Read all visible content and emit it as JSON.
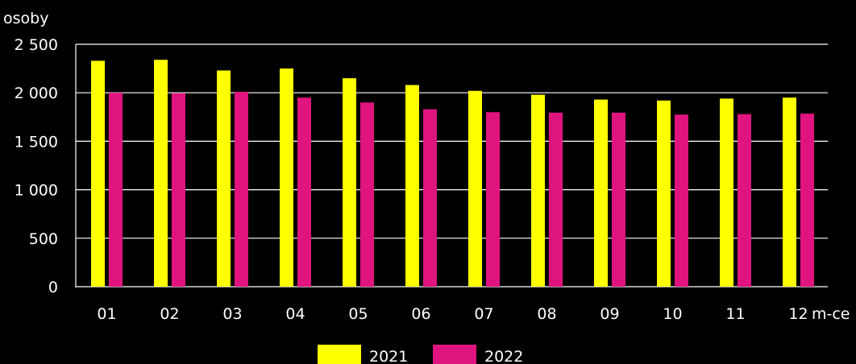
{
  "chart_data": {
    "type": "bar",
    "ylabel": "osoby",
    "xlabel": "m-ce",
    "categories": [
      "01",
      "02",
      "03",
      "04",
      "05",
      "06",
      "07",
      "08",
      "09",
      "10",
      "11",
      "12"
    ],
    "series": [
      {
        "name": "2021",
        "color": "#ffff00",
        "values": [
          2330,
          2340,
          2230,
          2250,
          2150,
          2080,
          2020,
          1980,
          1930,
          1920,
          1940,
          1950
        ]
      },
      {
        "name": "2022",
        "color": "#e0147f",
        "values": [
          2000,
          1995,
          2010,
          1950,
          1900,
          1830,
          1800,
          1795,
          1795,
          1775,
          1780,
          1785
        ]
      }
    ],
    "ylim": [
      0,
      2500
    ],
    "yticks": [
      0,
      500,
      1000,
      1500,
      2000,
      2500
    ],
    "ytick_labels": [
      "0",
      "500",
      "1 000",
      "1 500",
      "2 000",
      "2 500"
    ],
    "grid": true,
    "legend": "bottom-center"
  }
}
